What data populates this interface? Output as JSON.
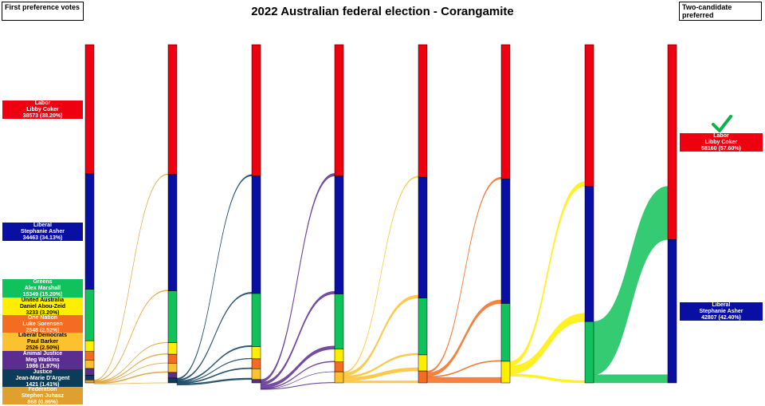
{
  "title": "2022 Australian federal election - Corangamite",
  "left_caption": "First preference votes",
  "right_caption": "Two-candidate preferred",
  "colors": {
    "Labor": "#ee0010",
    "Liberal": "#0a0fa3",
    "Greens": "#10c25b",
    "United Australia": "#ffee00",
    "One Nation": "#f36c21",
    "Liberal Democrats": "#fcc12e",
    "Animal Justice": "#5c2d91",
    "Justice": "#0b3d5b",
    "Federation": "#e0a030"
  },
  "first_preferences": [
    {
      "party": "Labor",
      "candidate": "Libby Coker",
      "votes": "38573 (38.20%)"
    },
    {
      "party": "Liberal",
      "candidate": "Stephanie Asher",
      "votes": "34463 (34.13%)"
    },
    {
      "party": "Greens",
      "candidate": "Alex Marshall",
      "votes": "15349 (15.20%)"
    },
    {
      "party": "United Australia",
      "candidate": "Daniel Abou-Zeid",
      "votes": "3233 (3.20%)"
    },
    {
      "party": "One Nation",
      "candidate": "Luke Sorensen",
      "votes": "2548 (2.52%)"
    },
    {
      "party": "Liberal Democrats",
      "candidate": "Paul Barker",
      "votes": "2526 (2.50%)"
    },
    {
      "party": "Animal Justice",
      "candidate": "Meg Watkins",
      "votes": "1986 (1.97%)"
    },
    {
      "party": "Justice",
      "candidate": "Jean-Marie D'Argent",
      "votes": "1421 (1.41%)"
    },
    {
      "party": "Federation",
      "candidate": "Stephen Juhasz",
      "votes": "868 (0.86%)"
    }
  ],
  "two_candidate_preferred": [
    {
      "party": "Labor",
      "candidate": "Libby Coker",
      "votes": "58160 (57.60%)",
      "winner": true
    },
    {
      "party": "Liberal",
      "candidate": "Stephanie Asher",
      "votes": "42807 (42.40%)",
      "winner": false
    }
  ],
  "chart_data": {
    "type": "sankey",
    "stages": [
      [
        [
          "Labor",
          38573
        ],
        [
          "Liberal",
          34463
        ],
        [
          "Greens",
          15349
        ],
        [
          "United Australia",
          3233
        ],
        [
          "One Nation",
          2548
        ],
        [
          "Liberal Democrats",
          2526
        ],
        [
          "Animal Justice",
          1986
        ],
        [
          "Justice",
          1421
        ],
        [
          "Federation",
          868
        ]
      ],
      [
        [
          "Labor",
          38780
        ],
        [
          "Liberal",
          34700
        ],
        [
          "Greens",
          15500
        ],
        [
          "United Australia",
          3450
        ],
        [
          "One Nation",
          2650
        ],
        [
          "Liberal Democrats",
          2780
        ],
        [
          "Animal Justice",
          1680
        ],
        [
          "Justice",
          1427
        ]
      ],
      [
        [
          "Labor",
          39200
        ],
        [
          "Liberal",
          35100
        ],
        [
          "Greens",
          15850
        ],
        [
          "United Australia",
          3650
        ],
        [
          "One Nation",
          2950
        ],
        [
          "Liberal Democrats",
          3220
        ],
        [
          "Animal Justice",
          997
        ]
      ],
      [
        [
          "Labor",
          40000
        ],
        [
          "Liberal",
          35900
        ],
        [
          "Greens",
          16800
        ],
        [
          "United Australia",
          3900
        ],
        [
          "One Nation",
          3000
        ],
        [
          "Liberal Democrats",
          3367
        ]
      ],
      [
        [
          "Labor",
          40350
        ],
        [
          "Liberal",
          36800
        ],
        [
          "Greens",
          17300
        ],
        [
          "United Australia",
          4900
        ],
        [
          "One Nation",
          3617
        ]
      ],
      [
        [
          "Labor",
          40900
        ],
        [
          "Liberal",
          37900
        ],
        [
          "Greens",
          17600
        ],
        [
          "United Australia",
          6567
        ]
      ],
      [
        [
          "Labor",
          42300
        ],
        [
          "Liberal",
          40367
        ],
        [
          "Greens",
          18300
        ]
      ],
      [
        [
          "Labor",
          58160
        ],
        [
          "Liberal",
          42807
        ]
      ]
    ],
    "eliminated": [
      "Federation",
      "Justice",
      "Animal Justice",
      "Liberal Democrats",
      "One Nation",
      "United Australia",
      "Greens"
    ],
    "flows": [
      [
        [
          "Labor",
          207
        ],
        [
          "Liberal",
          237
        ],
        [
          "Greens",
          151
        ],
        [
          "United Australia",
          217
        ],
        [
          "One Nation",
          102
        ],
        [
          "Liberal Democrats",
          254
        ],
        [
          "Justice",
          6
        ]
      ],
      [
        [
          "Labor",
          420
        ],
        [
          "Liberal",
          400
        ],
        [
          "Greens",
          350
        ],
        [
          "United Australia",
          200
        ],
        [
          "One Nation",
          300
        ],
        [
          "Liberal Democrats",
          440
        ],
        [
          "Animal Justice",
          -683
        ]
      ],
      [
        [
          "Labor",
          800
        ],
        [
          "Liberal",
          800
        ],
        [
          "Greens",
          950
        ],
        [
          "United Australia",
          250
        ],
        [
          "One Nation",
          50
        ],
        [
          "Liberal Democrats",
          147
        ]
      ],
      [
        [
          "Labor",
          350
        ],
        [
          "Liberal",
          900
        ],
        [
          "Greens",
          500
        ],
        [
          "United Australia",
          1000
        ],
        [
          "One Nation",
          617
        ]
      ],
      [
        [
          "Labor",
          550
        ],
        [
          "Liberal",
          1100
        ],
        [
          "Greens",
          300
        ],
        [
          "United Australia",
          1667
        ]
      ],
      [
        [
          "Labor",
          1400
        ],
        [
          "Liberal",
          2467
        ],
        [
          "Greens",
          700
        ]
      ],
      [
        [
          "Labor",
          15860
        ],
        [
          "Liberal",
          2440
        ]
      ]
    ]
  }
}
